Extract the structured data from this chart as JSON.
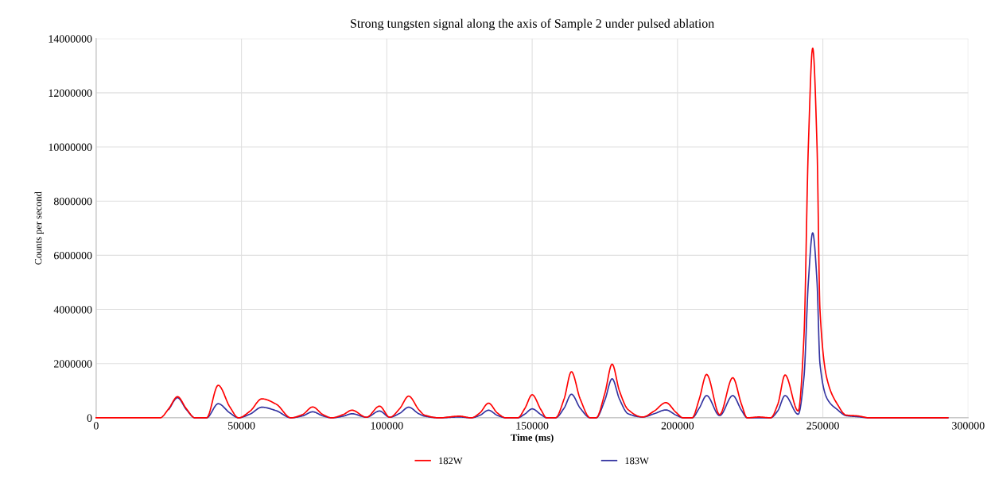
{
  "chart_data": {
    "type": "line",
    "title": "Strong tungsten signal along the axis of Sample 2 under pulsed ablation",
    "xlabel": "Time (ms)",
    "ylabel": "Counts per second",
    "x": [
      0,
      19000,
      22000,
      25000,
      28000,
      31000,
      34000,
      38000,
      42000,
      46000,
      49000,
      53000,
      57000,
      62000,
      67000,
      71000,
      74500,
      78000,
      81000,
      85000,
      88000,
      93000,
      97500,
      101000,
      104500,
      107500,
      111000,
      113000,
      118000,
      125000,
      129000,
      132000,
      135000,
      138000,
      141000,
      145000,
      147500,
      150000,
      153000,
      155000,
      158000,
      161000,
      163500,
      166500,
      170000,
      172000,
      175000,
      177500,
      180000,
      183000,
      188000,
      192000,
      196000,
      199500,
      202000,
      205000,
      207500,
      210000,
      214500,
      219000,
      222000,
      224000,
      228000,
      232000,
      234500,
      237000,
      241500,
      243500,
      245000,
      246500,
      248000,
      249000,
      251500,
      255000,
      258000,
      262000,
      266000,
      293000
    ],
    "series": [
      {
        "name": "182W",
        "color": "#ff0000",
        "values": [
          0,
          0,
          0,
          340000,
          780000,
          340000,
          0,
          0,
          1200000,
          400000,
          0,
          250000,
          700000,
          500000,
          0,
          120000,
          400000,
          120000,
          0,
          120000,
          280000,
          20000,
          430000,
          20000,
          350000,
          800000,
          300000,
          100000,
          0,
          60000,
          0,
          180000,
          540000,
          180000,
          0,
          0,
          350000,
          850000,
          300000,
          0,
          0,
          700000,
          1700000,
          700000,
          0,
          0,
          900000,
          1980000,
          1000000,
          300000,
          30000,
          250000,
          560000,
          200000,
          0,
          0,
          700000,
          1600000,
          120000,
          1480000,
          500000,
          0,
          30000,
          0,
          500000,
          1580000,
          250000,
          3000000,
          10000000,
          13650000,
          10000000,
          4000000,
          1400000,
          500000,
          100000,
          70000,
          0,
          0
        ]
      },
      {
        "name": "183W",
        "color": "#3333a0",
        "values": [
          null,
          null,
          null,
          310000,
          740000,
          310000,
          0,
          0,
          520000,
          180000,
          0,
          140000,
          390000,
          260000,
          0,
          70000,
          220000,
          70000,
          0,
          60000,
          150000,
          20000,
          250000,
          20000,
          170000,
          390000,
          150000,
          60000,
          0,
          30000,
          0,
          90000,
          280000,
          90000,
          0,
          0,
          140000,
          330000,
          120000,
          0,
          0,
          360000,
          870000,
          360000,
          0,
          0,
          650000,
          1440000,
          700000,
          150000,
          30000,
          150000,
          290000,
          100000,
          0,
          0,
          360000,
          820000,
          80000,
          820000,
          280000,
          0,
          null,
          0,
          260000,
          820000,
          130000,
          1500000,
          5000000,
          6830000,
          5000000,
          2000000,
          700000,
          300000,
          80000,
          40000,
          0,
          0
        ]
      }
    ],
    "xlim": [
      0,
      300000
    ],
    "xticks": [
      0,
      50000,
      100000,
      150000,
      200000,
      250000,
      300000
    ],
    "ylim": [
      0,
      14000000
    ],
    "yticks": [
      0,
      2000000,
      4000000,
      6000000,
      8000000,
      10000000,
      12000000,
      14000000
    ],
    "grid": true,
    "legend": "bottom",
    "marker": "none",
    "line_style": "solid"
  }
}
